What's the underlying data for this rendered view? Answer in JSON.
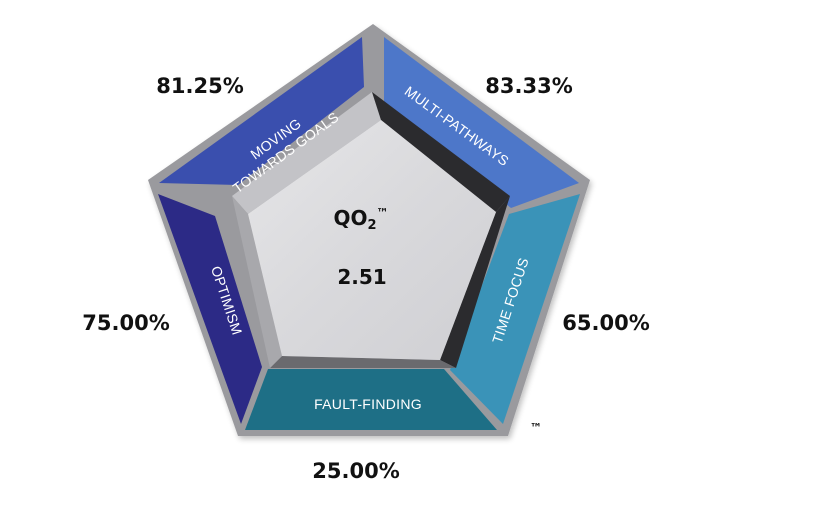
{
  "diagram": {
    "center": {
      "title_base": "QO",
      "title_sub": "2",
      "title_tm": "™",
      "score": "2.51"
    },
    "segments": [
      {
        "id": "moving-towards-goals",
        "lines": [
          "MOVING",
          "TOWARDS GOALS"
        ],
        "percent": "81.25%",
        "color": "#3a4fae"
      },
      {
        "id": "multi-pathways",
        "lines": [
          "MULTI-PATHWAYS"
        ],
        "percent": "83.33%",
        "color": "#4d77c9"
      },
      {
        "id": "time-focus",
        "lines": [
          "TIME FOCUS"
        ],
        "percent": "65.00%",
        "color": "#3a93b8"
      },
      {
        "id": "fault-finding",
        "lines": [
          "FAULT-FINDING"
        ],
        "percent": "25.00%",
        "color": "#1e6f86"
      },
      {
        "id": "optimism",
        "lines": [
          "OPTIMISM"
        ],
        "percent": "75.00%",
        "color": "#2c2a86"
      }
    ],
    "trademark": "™"
  }
}
